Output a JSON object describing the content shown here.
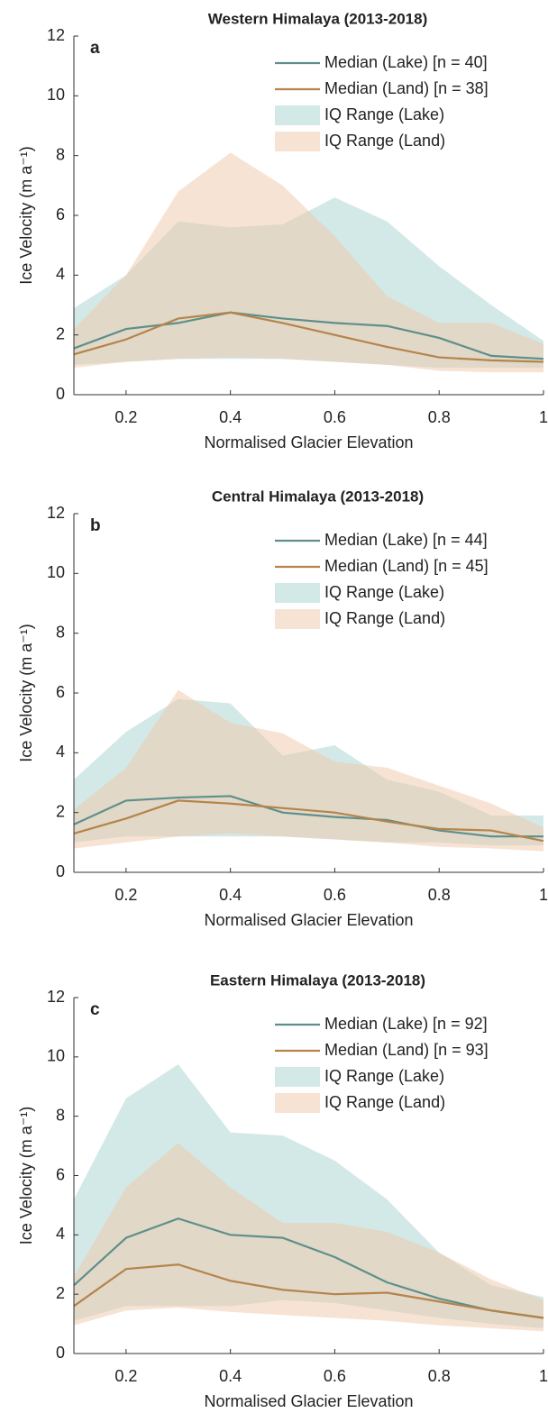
{
  "chart_data": [
    {
      "type": "line",
      "title": "Western Himalaya (2013-2018)",
      "panel_label": "a",
      "xlabel": "Normalised Glacier Elevation",
      "ylabel": "Ice Velocity (m a⁻¹)",
      "x": [
        0.1,
        0.2,
        0.3,
        0.4,
        0.5,
        0.6,
        0.7,
        0.8,
        0.9,
        1
      ],
      "xlim": [
        0.1,
        1
      ],
      "xticks": [
        0.2,
        0.4,
        0.6,
        0.8,
        1
      ],
      "ylim": [
        0,
        12
      ],
      "yticks": [
        0,
        2,
        4,
        6,
        8,
        10,
        12
      ],
      "legend": "upper right",
      "series": [
        {
          "name": "Median (Lake) [n = 40]",
          "color": "#5e8f8b",
          "values": [
            1.55,
            2.2,
            2.4,
            2.75,
            2.55,
            2.4,
            2.3,
            1.9,
            1.3,
            1.2
          ]
        },
        {
          "name": "Median (Land) [n = 38]",
          "color": "#b5844a",
          "values": [
            1.35,
            1.85,
            2.55,
            2.75,
            2.4,
            2.0,
            1.6,
            1.25,
            1.15,
            1.1
          ]
        }
      ],
      "ranges": [
        {
          "name": "IQ Range (Lake)",
          "color": "#a8d3cf",
          "lower": [
            1.0,
            1.1,
            1.2,
            1.2,
            1.2,
            1.1,
            1.0,
            0.9,
            0.9,
            0.9
          ],
          "upper": [
            2.9,
            4.0,
            5.8,
            5.6,
            5.7,
            6.6,
            5.8,
            4.3,
            3.0,
            1.8
          ]
        },
        {
          "name": "IQ Range (Land)",
          "color": "#f0c8aa",
          "lower": [
            0.9,
            1.1,
            1.2,
            1.25,
            1.2,
            1.1,
            1.0,
            0.8,
            0.75,
            0.75
          ],
          "upper": [
            2.2,
            4.0,
            6.8,
            8.1,
            7.0,
            5.3,
            3.3,
            2.4,
            2.4,
            1.7
          ]
        }
      ]
    },
    {
      "type": "line",
      "title": "Central Himalaya (2013-2018)",
      "panel_label": "b",
      "xlabel": "Normalised Glacier Elevation",
      "ylabel": "Ice Velocity (m a⁻¹)",
      "x": [
        0.1,
        0.2,
        0.3,
        0.4,
        0.5,
        0.6,
        0.7,
        0.8,
        0.9,
        1
      ],
      "xlim": [
        0.1,
        1
      ],
      "xticks": [
        0.2,
        0.4,
        0.6,
        0.8,
        1
      ],
      "ylim": [
        0,
        12
      ],
      "yticks": [
        0,
        2,
        4,
        6,
        8,
        10,
        12
      ],
      "legend": "upper right",
      "series": [
        {
          "name": "Median (Lake) [n = 44]",
          "color": "#5e8f8b",
          "values": [
            1.6,
            2.4,
            2.5,
            2.55,
            2.0,
            1.85,
            1.75,
            1.4,
            1.2,
            1.2
          ]
        },
        {
          "name": "Median (Land) [n = 45]",
          "color": "#b5844a",
          "values": [
            1.3,
            1.8,
            2.4,
            2.3,
            2.15,
            2.0,
            1.7,
            1.45,
            1.4,
            1.05
          ]
        }
      ],
      "ranges": [
        {
          "name": "IQ Range (Lake)",
          "color": "#a8d3cf",
          "lower": [
            1.0,
            1.2,
            1.2,
            1.2,
            1.2,
            1.1,
            1.0,
            1.0,
            0.9,
            0.9
          ],
          "upper": [
            3.1,
            4.7,
            5.8,
            5.65,
            3.9,
            4.25,
            3.1,
            2.7,
            1.9,
            1.9
          ]
        },
        {
          "name": "IQ Range (Land)",
          "color": "#f0c8aa",
          "lower": [
            0.8,
            1.0,
            1.2,
            1.3,
            1.2,
            1.1,
            1.0,
            0.85,
            0.8,
            0.7
          ],
          "upper": [
            2.1,
            3.5,
            6.1,
            5.0,
            4.65,
            3.7,
            3.5,
            2.9,
            2.3,
            1.5
          ]
        }
      ]
    },
    {
      "type": "line",
      "title": "Eastern Himalaya (2013-2018)",
      "panel_label": "c",
      "xlabel": "Normalised Glacier Elevation",
      "ylabel": "Ice Velocity (m a⁻¹)",
      "x": [
        0.1,
        0.2,
        0.3,
        0.4,
        0.5,
        0.6,
        0.7,
        0.8,
        0.9,
        1
      ],
      "xlim": [
        0.1,
        1
      ],
      "xticks": [
        0.2,
        0.4,
        0.6,
        0.8,
        1
      ],
      "ylim": [
        0,
        12
      ],
      "yticks": [
        0,
        2,
        4,
        6,
        8,
        10,
        12
      ],
      "legend": "upper right",
      "series": [
        {
          "name": "Median (Lake) [n = 92]",
          "color": "#5e8f8b",
          "values": [
            2.3,
            3.9,
            4.55,
            4.0,
            3.9,
            3.25,
            2.4,
            1.85,
            1.45,
            1.2
          ]
        },
        {
          "name": "Median (Land) [n = 93]",
          "color": "#b5844a",
          "values": [
            1.6,
            2.85,
            3.0,
            2.45,
            2.15,
            2.0,
            2.05,
            1.75,
            1.45,
            1.2
          ]
        }
      ],
      "ranges": [
        {
          "name": "IQ Range (Lake)",
          "color": "#a8d3cf",
          "lower": [
            1.1,
            1.6,
            1.6,
            1.6,
            1.8,
            1.7,
            1.45,
            1.2,
            1.0,
            0.85
          ],
          "upper": [
            5.2,
            8.6,
            9.75,
            7.45,
            7.35,
            6.5,
            5.2,
            3.4,
            2.3,
            1.9
          ]
        },
        {
          "name": "IQ Range (Land)",
          "color": "#f0c8aa",
          "lower": [
            0.95,
            1.45,
            1.55,
            1.4,
            1.3,
            1.2,
            1.1,
            0.95,
            0.85,
            0.75
          ],
          "upper": [
            2.6,
            5.6,
            7.1,
            5.6,
            4.4,
            4.4,
            4.1,
            3.4,
            2.5,
            1.8
          ]
        }
      ]
    }
  ]
}
